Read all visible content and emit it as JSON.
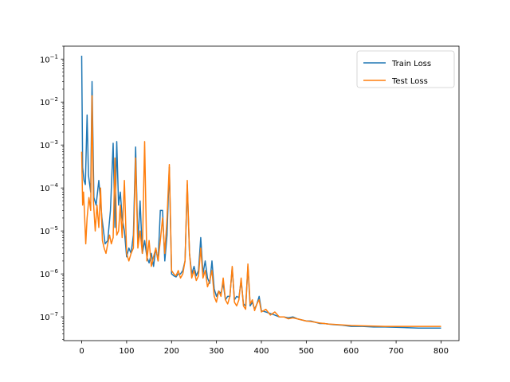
{
  "chart_data": {
    "type": "line",
    "title": "",
    "xlabel": "",
    "ylabel": "",
    "y_scale": "log",
    "xlim": [
      -40,
      840
    ],
    "ylim": [
      2.8e-08,
      0.2
    ],
    "x_ticks": [
      0,
      100,
      200,
      300,
      400,
      500,
      600,
      700,
      800
    ],
    "y_ticks": [
      {
        "value": 1e-07,
        "label": "10^-7"
      },
      {
        "value": 1e-06,
        "label": "10^-6"
      },
      {
        "value": 1e-05,
        "label": "10^-5"
      },
      {
        "value": 0.0001,
        "label": "10^-4"
      },
      {
        "value": 0.001,
        "label": "10^-3"
      },
      {
        "value": 0.01,
        "label": "10^-2"
      },
      {
        "value": 0.1,
        "label": "10^-1"
      }
    ],
    "grid": false,
    "legend_position": "top-right",
    "series": [
      {
        "name": "Train Loss",
        "color": "#1f77b4",
        "x": [
          0,
          2,
          5,
          8,
          12,
          15,
          20,
          23,
          27,
          32,
          38,
          45,
          52,
          58,
          64,
          70,
          74,
          78,
          82,
          86,
          90,
          95,
          100,
          105,
          110,
          115,
          120,
          125,
          130,
          135,
          140,
          145,
          150,
          155,
          160,
          165,
          170,
          175,
          180,
          185,
          190,
          195,
          200,
          205,
          210,
          215,
          220,
          225,
          230,
          235,
          240,
          245,
          250,
          255,
          260,
          265,
          270,
          275,
          280,
          285,
          290,
          295,
          300,
          305,
          310,
          315,
          320,
          325,
          330,
          335,
          340,
          345,
          350,
          355,
          360,
          365,
          370,
          375,
          380,
          385,
          390,
          395,
          400,
          410,
          420,
          430,
          440,
          450,
          460,
          470,
          480,
          490,
          500,
          510,
          520,
          530,
          540,
          550,
          560,
          570,
          580,
          590,
          600,
          625,
          650,
          675,
          700,
          725,
          750,
          775,
          800
        ],
        "y": [
          0.12,
          0.0003,
          0.00015,
          0.00012,
          0.005,
          0.0002,
          8e-05,
          0.03,
          6e-05,
          4e-05,
          0.00015,
          2e-05,
          5e-06,
          6e-06,
          3e-05,
          0.0011,
          1.2e-05,
          0.0012,
          4e-05,
          8e-05,
          2e-05,
          1e-05,
          2.5e-06,
          4e-06,
          3e-06,
          8e-06,
          0.0009,
          5e-06,
          5e-05,
          3e-06,
          6e-06,
          2.5e-06,
          1.8e-06,
          3e-06,
          1.5e-06,
          4e-06,
          2e-06,
          3e-05,
          3e-05,
          2e-06,
          8e-06,
          0.0003,
          1e-06,
          9e-07,
          8.5e-07,
          1e-06,
          1e-06,
          1.2e-06,
          2e-06,
          0.00012,
          3e-06,
          1e-06,
          1.5e-06,
          9e-07,
          1.2e-06,
          7e-06,
          1e-06,
          2e-06,
          8e-07,
          6e-07,
          2e-06,
          4.5e-07,
          3e-07,
          4e-07,
          3.5e-07,
          6e-07,
          2.5e-07,
          3e-07,
          3e-07,
          1.4e-06,
          2.5e-07,
          3e-07,
          2.8e-07,
          7e-07,
          2e-07,
          1.8e-07,
          1.5e-06,
          1.8e-07,
          2.2e-07,
          1.5e-07,
          2e-07,
          3e-07,
          1.4e-07,
          1.3e-07,
          1.2e-07,
          1.1e-07,
          1e-07,
          1e-07,
          9.5e-08,
          1e-07,
          9e-08,
          8.5e-08,
          8e-08,
          8e-08,
          7.5e-08,
          7e-08,
          7e-08,
          6.8e-08,
          6.6e-08,
          6.5e-08,
          6.4e-08,
          6.2e-08,
          6e-08,
          6e-08,
          5.8e-08,
          5.8e-08,
          5.7e-08,
          5.6e-08,
          5.5e-08,
          5.5e-08,
          5.5e-08
        ]
      },
      {
        "name": "Test Loss",
        "color": "#ff7f0e",
        "x": [
          0,
          2,
          4,
          6,
          9,
          12,
          16,
          20,
          23,
          26,
          30,
          34,
          38,
          42,
          46,
          50,
          54,
          58,
          62,
          66,
          70,
          74,
          78,
          82,
          86,
          90,
          95,
          100,
          105,
          110,
          115,
          120,
          125,
          130,
          135,
          140,
          145,
          150,
          155,
          160,
          165,
          170,
          175,
          180,
          185,
          190,
          195,
          200,
          205,
          210,
          215,
          220,
          225,
          230,
          235,
          240,
          245,
          250,
          255,
          260,
          265,
          270,
          275,
          280,
          285,
          290,
          295,
          300,
          305,
          310,
          315,
          320,
          325,
          330,
          335,
          340,
          345,
          350,
          355,
          360,
          365,
          370,
          375,
          380,
          385,
          390,
          395,
          400,
          410,
          420,
          430,
          440,
          450,
          460,
          470,
          480,
          490,
          500,
          510,
          520,
          530,
          540,
          550,
          560,
          570,
          580,
          590,
          600,
          625,
          650,
          675,
          700,
          725,
          750,
          775,
          800
        ],
        "y": [
          0.0007,
          4e-05,
          8e-05,
          3e-05,
          5e-06,
          2e-05,
          6e-05,
          3e-05,
          0.014,
          5e-05,
          1e-05,
          4e-05,
          1.2e-05,
          0.0001,
          6e-06,
          4e-06,
          3e-06,
          5e-06,
          8e-06,
          5e-06,
          7e-06,
          0.0005,
          8e-06,
          1e-05,
          4e-05,
          7e-06,
          0.00015,
          3e-06,
          2e-06,
          3e-06,
          4e-06,
          0.0005,
          4e-06,
          1e-05,
          3e-06,
          0.0012,
          2e-06,
          6e-06,
          1.5e-06,
          2.5e-06,
          4e-06,
          2e-06,
          6e-06,
          2e-05,
          3e-06,
          2e-05,
          0.00035,
          1.2e-06,
          1e-06,
          9e-07,
          1.2e-06,
          8e-07,
          1e-06,
          2e-06,
          0.00015,
          3e-06,
          8e-07,
          1.2e-06,
          7e-07,
          9e-07,
          4e-06,
          8e-07,
          1.2e-06,
          5e-07,
          7e-07,
          1.2e-06,
          3e-07,
          2.2e-07,
          4e-07,
          3e-07,
          8e-07,
          2.5e-07,
          2e-07,
          3e-07,
          1.5e-06,
          2.2e-07,
          1.8e-07,
          2.5e-07,
          8e-07,
          1.8e-07,
          1.5e-07,
          1.7e-06,
          2e-07,
          2.5e-07,
          1.4e-07,
          2e-07,
          2.5e-07,
          1.3e-07,
          1.5e-07,
          1.1e-07,
          1.3e-07,
          1e-07,
          1e-07,
          9e-08,
          9.5e-08,
          9e-08,
          8.5e-08,
          8e-08,
          7.8e-08,
          7.5e-08,
          7.2e-08,
          7e-08,
          6.8e-08,
          6.7e-08,
          6.6e-08,
          6.5e-08,
          6.4e-08,
          6.3e-08,
          6.2e-08,
          6.1e-08,
          6e-08,
          6e-08,
          6e-08,
          6e-08,
          6e-08,
          6e-08
        ]
      }
    ]
  }
}
